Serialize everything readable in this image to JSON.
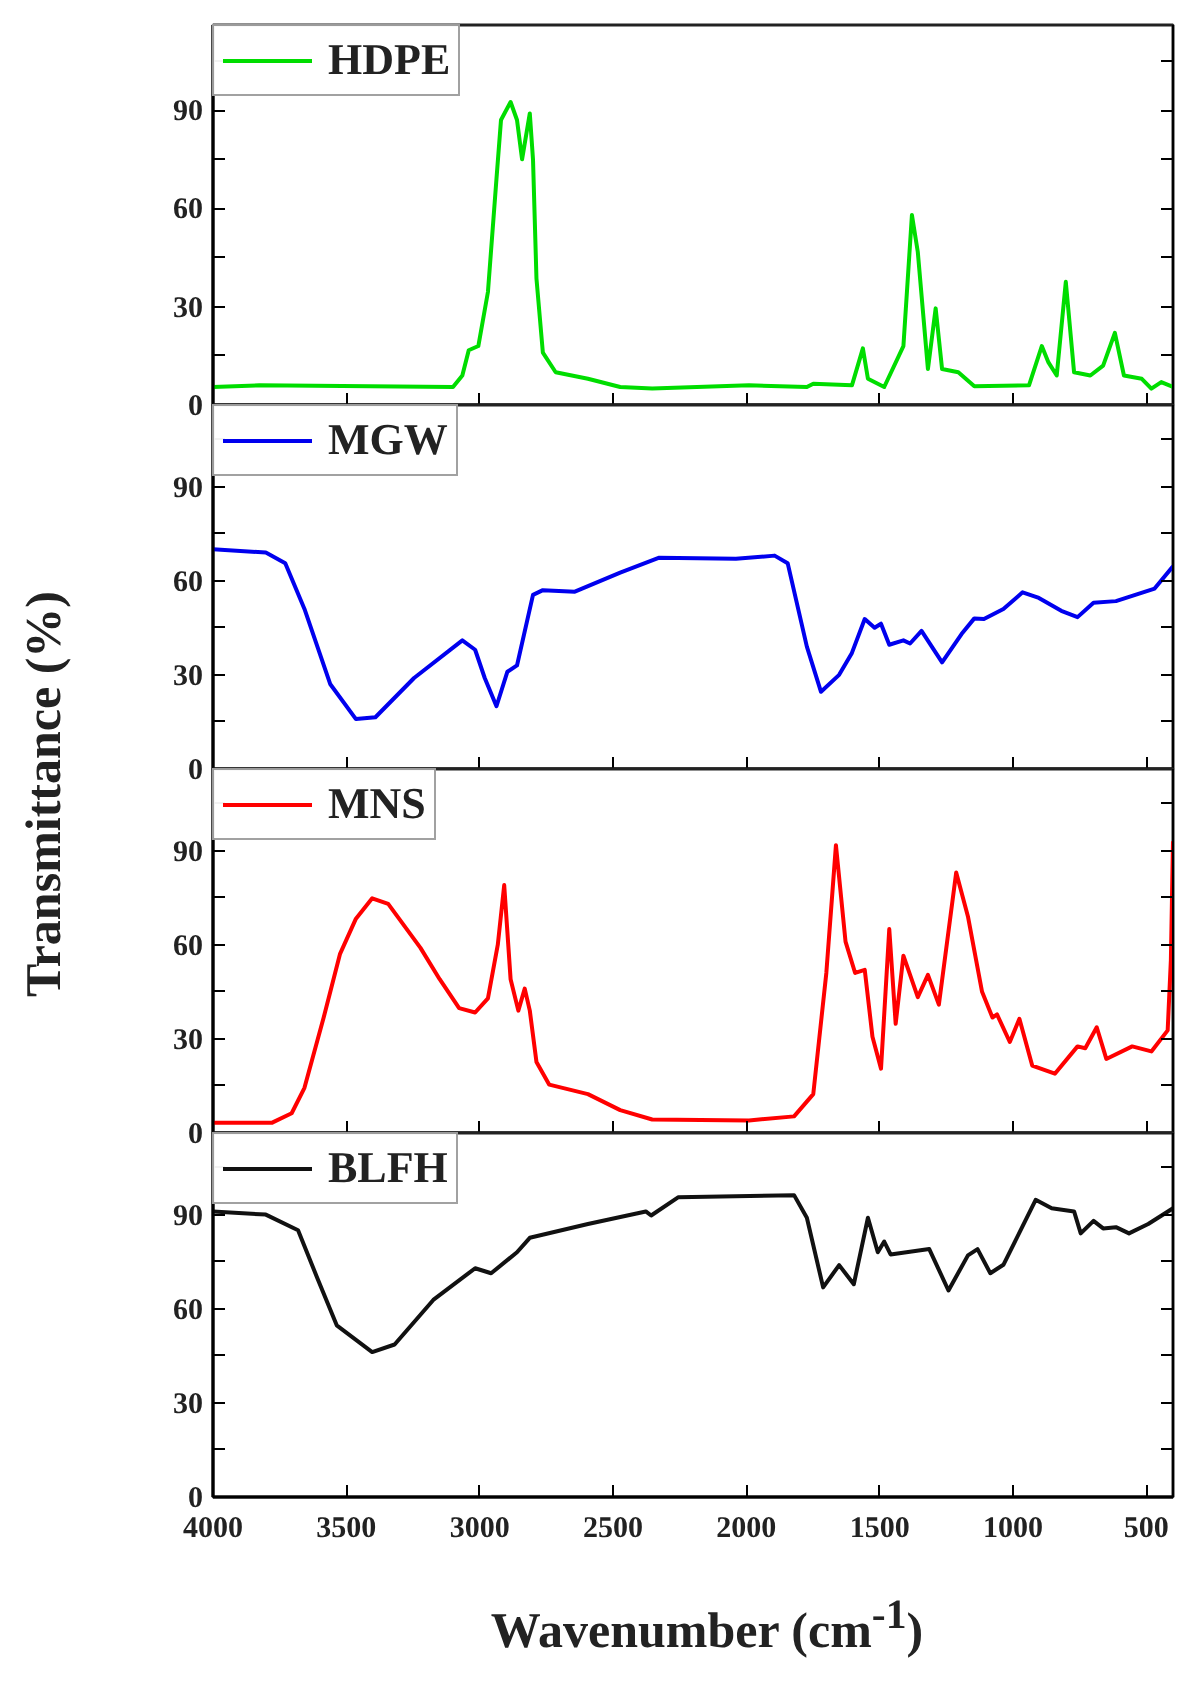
{
  "chart_data": [
    {
      "type": "line",
      "ylabel": "Transmittance (%)",
      "legend": "top left",
      "tick_labels": "y",
      "xlim": [
        4000,
        400
      ],
      "xticks": [
        4000,
        3500,
        3000,
        2500,
        2000,
        1500,
        1000,
        500
      ],
      "ylim": [
        0,
        116
      ],
      "yticks": [
        0,
        {
          "value": 15,
          "label": null
        },
        30,
        {
          "value": 45,
          "label": null
        },
        60,
        {
          "value": 75,
          "label": null
        },
        90,
        {
          "value": 105,
          "label": null
        }
      ],
      "series": [
        {
          "name": "HDPE",
          "color": "#00dd00",
          "x": [
            4000,
            3826,
            3100,
            3065,
            3041,
            3005,
            2969,
            2937,
            2920,
            2884,
            2860,
            2841,
            2812,
            2800,
            2787,
            2763,
            2715,
            2594,
            2473,
            2353,
            1990,
            1773,
            1749,
            1604,
            1563,
            1544,
            1483,
            1411,
            1379,
            1357,
            1319,
            1290,
            1266,
            1205,
            1145,
            940,
            892,
            867,
            836,
            802,
            771,
            710,
            662,
            618,
            584,
            517,
            481,
            444,
            400
          ],
          "values": [
            5.5,
            6,
            5.5,
            9,
            16.7,
            18,
            34.5,
            69,
            87,
            92.5,
            87,
            75,
            89,
            75,
            38.6,
            16,
            10,
            8,
            5.5,
            5,
            6,
            5.5,
            6.5,
            6,
            17.3,
            8,
            5.5,
            18,
            58,
            46.7,
            11,
            29.5,
            11,
            10,
            5.7,
            6,
            18,
            13,
            9,
            37.6,
            10,
            9,
            12,
            22,
            9,
            8,
            5,
            7,
            5.5
          ]
        }
      ]
    },
    {
      "type": "line",
      "legend": "top left",
      "tick_labels": "y",
      "xlim": [
        4000,
        400
      ],
      "xticks": [
        4000,
        3500,
        3000,
        2500,
        2000,
        1500,
        1000,
        500
      ],
      "ylim": [
        0,
        116
      ],
      "yticks": [
        0,
        {
          "value": 15,
          "label": null
        },
        30,
        {
          "value": 45,
          "label": null
        },
        60,
        {
          "value": 75,
          "label": null
        },
        90,
        {
          "value": 105,
          "label": null
        }
      ],
      "series": [
        {
          "name": "MGW",
          "color": "#0000ee",
          "x": [
            4000,
            3802,
            3729,
            3657,
            3560,
            3464,
            3391,
            3246,
            3065,
            3017,
            2981,
            2937,
            2896,
            2860,
            2800,
            2763,
            2643,
            2473,
            2329,
            2039,
            1894,
            1845,
            1773,
            1720,
            1652,
            1604,
            1556,
            1519,
            1495,
            1464,
            1411,
            1386,
            1343,
            1266,
            1193,
            1145,
            1109,
            1036,
            964,
            903,
            819,
            758,
            698,
            614,
            469,
            400
          ],
          "values": [
            70,
            69,
            65.6,
            51,
            27,
            15.9,
            16.5,
            29,
            41,
            38,
            29,
            20,
            31,
            33,
            55.5,
            57,
            56.5,
            62.6,
            67.3,
            67,
            68,
            65.6,
            39,
            24.6,
            30,
            37,
            47.8,
            45,
            46.3,
            39.6,
            41,
            40,
            44,
            34,
            43,
            48,
            47.8,
            51,
            56.3,
            54.5,
            50.4,
            48.4,
            53,
            53.5,
            57.5,
            64.6
          ]
        }
      ]
    },
    {
      "type": "line",
      "legend": "top left",
      "tick_labels": "y",
      "xlim": [
        4000,
        400
      ],
      "xticks": [
        4000,
        3500,
        3000,
        2500,
        2000,
        1500,
        1000,
        500
      ],
      "ylim": [
        0,
        116
      ],
      "yticks": [
        0,
        {
          "value": 15,
          "label": null
        },
        30,
        {
          "value": 45,
          "label": null
        },
        60,
        {
          "value": 75,
          "label": null
        },
        90,
        {
          "value": 105,
          "label": null
        }
      ],
      "series": [
        {
          "name": "MNS",
          "color": "#ff0000",
          "x": [
            4000,
            3778,
            3705,
            3657,
            3585,
            3524,
            3464,
            3403,
            3343,
            3222,
            3150,
            3077,
            3017,
            2969,
            2932,
            2908,
            2884,
            2855,
            2831,
            2812,
            2787,
            2739,
            2594,
            2473,
            2353,
            1990,
            1821,
            1749,
            1700,
            1664,
            1628,
            1592,
            1556,
            1527,
            1495,
            1464,
            1440,
            1411,
            1357,
            1319,
            1278,
            1213,
            1169,
            1116,
            1077,
            1060,
            1012,
            976,
            928,
            843,
            758,
            729,
            686,
            650,
            553,
            481,
            420,
            408,
            400
          ],
          "values": [
            3.3,
            3.3,
            6.3,
            14.4,
            36.8,
            57,
            68.3,
            74.8,
            73,
            59,
            49,
            39.8,
            38.4,
            42.9,
            60,
            79,
            49,
            39,
            46,
            39,
            22.6,
            15.4,
            12.4,
            7.3,
            4.3,
            4,
            5.3,
            12.4,
            51,
            91.7,
            61,
            51,
            52,
            30.7,
            20.5,
            65,
            34.8,
            56.5,
            43.3,
            50.4,
            40.9,
            83,
            69,
            45,
            36.8,
            37.8,
            29,
            36.4,
            21.5,
            18.9,
            27.6,
            27,
            33.7,
            23.6,
            27.6,
            26,
            32.7,
            55,
            93
          ]
        }
      ]
    },
    {
      "type": "line",
      "xlabel": "Wavenumber (cm$^{-1}$)",
      "legend": "top left",
      "xlim": [
        4000,
        400
      ],
      "xticks": [
        4000,
        3500,
        3000,
        2500,
        2000,
        1500,
        1000,
        500
      ],
      "ylim": [
        0,
        116
      ],
      "yticks": [
        0,
        {
          "value": 15,
          "label": null
        },
        30,
        {
          "value": 45,
          "label": null
        },
        60,
        {
          "value": 75,
          "label": null
        },
        90,
        {
          "value": 105,
          "label": null
        }
      ],
      "series": [
        {
          "name": "BLFH",
          "color": "#111111",
          "x": [
            4000,
            3802,
            3681,
            3609,
            3536,
            3403,
            3319,
            3174,
            3017,
            2957,
            2860,
            2812,
            2594,
            2377,
            2357,
            2256,
            1821,
            1773,
            1712,
            1652,
            1597,
            1544,
            1507,
            1483,
            1459,
            1314,
            1242,
            1169,
            1133,
            1085,
            1036,
            915,
            855,
            771,
            746,
            698,
            662,
            614,
            565,
            493,
            400
          ],
          "values": [
            91,
            90,
            85,
            69.8,
            54.7,
            46.2,
            48.6,
            62.8,
            72.9,
            71.3,
            78,
            82.6,
            87,
            91,
            89.7,
            95.5,
            96.2,
            89,
            66.8,
            73.9,
            67.8,
            89,
            78,
            81.4,
            77.3,
            79,
            65.8,
            77,
            79,
            71.3,
            74,
            94.7,
            92,
            91,
            84,
            88,
            85.6,
            86,
            84,
            87,
            92
          ]
        }
      ]
    }
  ]
}
